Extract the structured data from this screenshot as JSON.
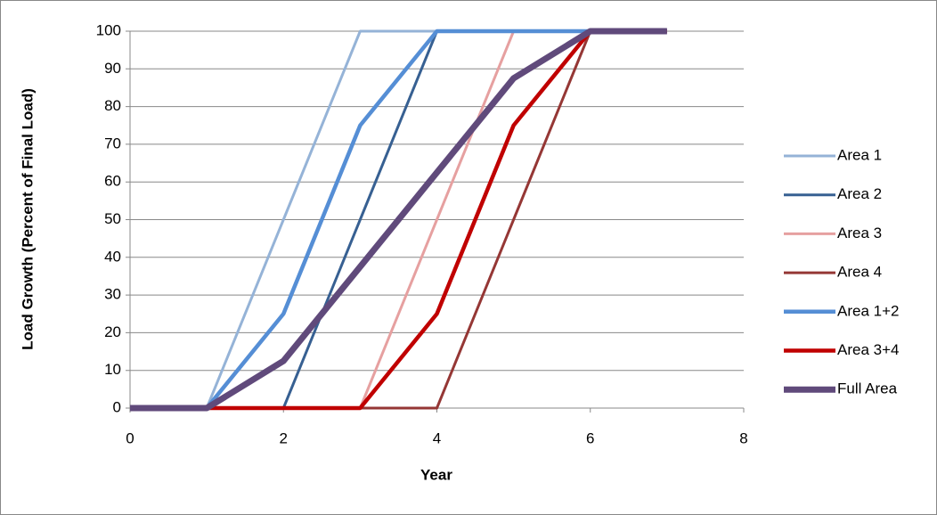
{
  "chart_data": {
    "type": "line",
    "x_label": "Year",
    "y_label": "Load Growth (Percent of Final Load)",
    "x": [
      0,
      1,
      2,
      3,
      4,
      5,
      6,
      7
    ],
    "xlim": [
      0,
      8
    ],
    "xticks": [
      0,
      2,
      4,
      6,
      8
    ],
    "ylim": [
      0,
      100
    ],
    "yticks": [
      0,
      10,
      20,
      30,
      40,
      50,
      60,
      70,
      80,
      90,
      100
    ],
    "grid": true,
    "legend": "right",
    "series": [
      {
        "name": "Area 1",
        "color": "#95b3d7",
        "width": 3,
        "values": [
          0,
          0,
          50,
          100,
          100,
          100,
          100,
          100
        ]
      },
      {
        "name": "Area 2",
        "color": "#376092",
        "width": 3,
        "values": [
          0,
          0,
          0,
          50,
          100,
          100,
          100,
          100
        ]
      },
      {
        "name": "Area 3",
        "color": "#e6a0a0",
        "width": 3,
        "values": [
          0,
          0,
          0,
          0,
          50,
          100,
          100,
          100
        ]
      },
      {
        "name": "Area 4",
        "color": "#953735",
        "width": 3,
        "values": [
          0,
          0,
          0,
          0,
          0,
          50,
          100,
          100
        ]
      },
      {
        "name": "Area 1+2",
        "color": "#558ed5",
        "width": 4.5,
        "values": [
          0,
          0,
          25,
          75,
          100,
          100,
          100,
          100
        ]
      },
      {
        "name": "Area 3+4",
        "color": "#c00000",
        "width": 4.5,
        "values": [
          0,
          0,
          0,
          0,
          25,
          75,
          100,
          100
        ]
      },
      {
        "name": "Full Area",
        "color": "#604a7b",
        "width": 7,
        "values": [
          0,
          0,
          12.5,
          37.5,
          62.5,
          87.5,
          100,
          100
        ]
      }
    ]
  }
}
